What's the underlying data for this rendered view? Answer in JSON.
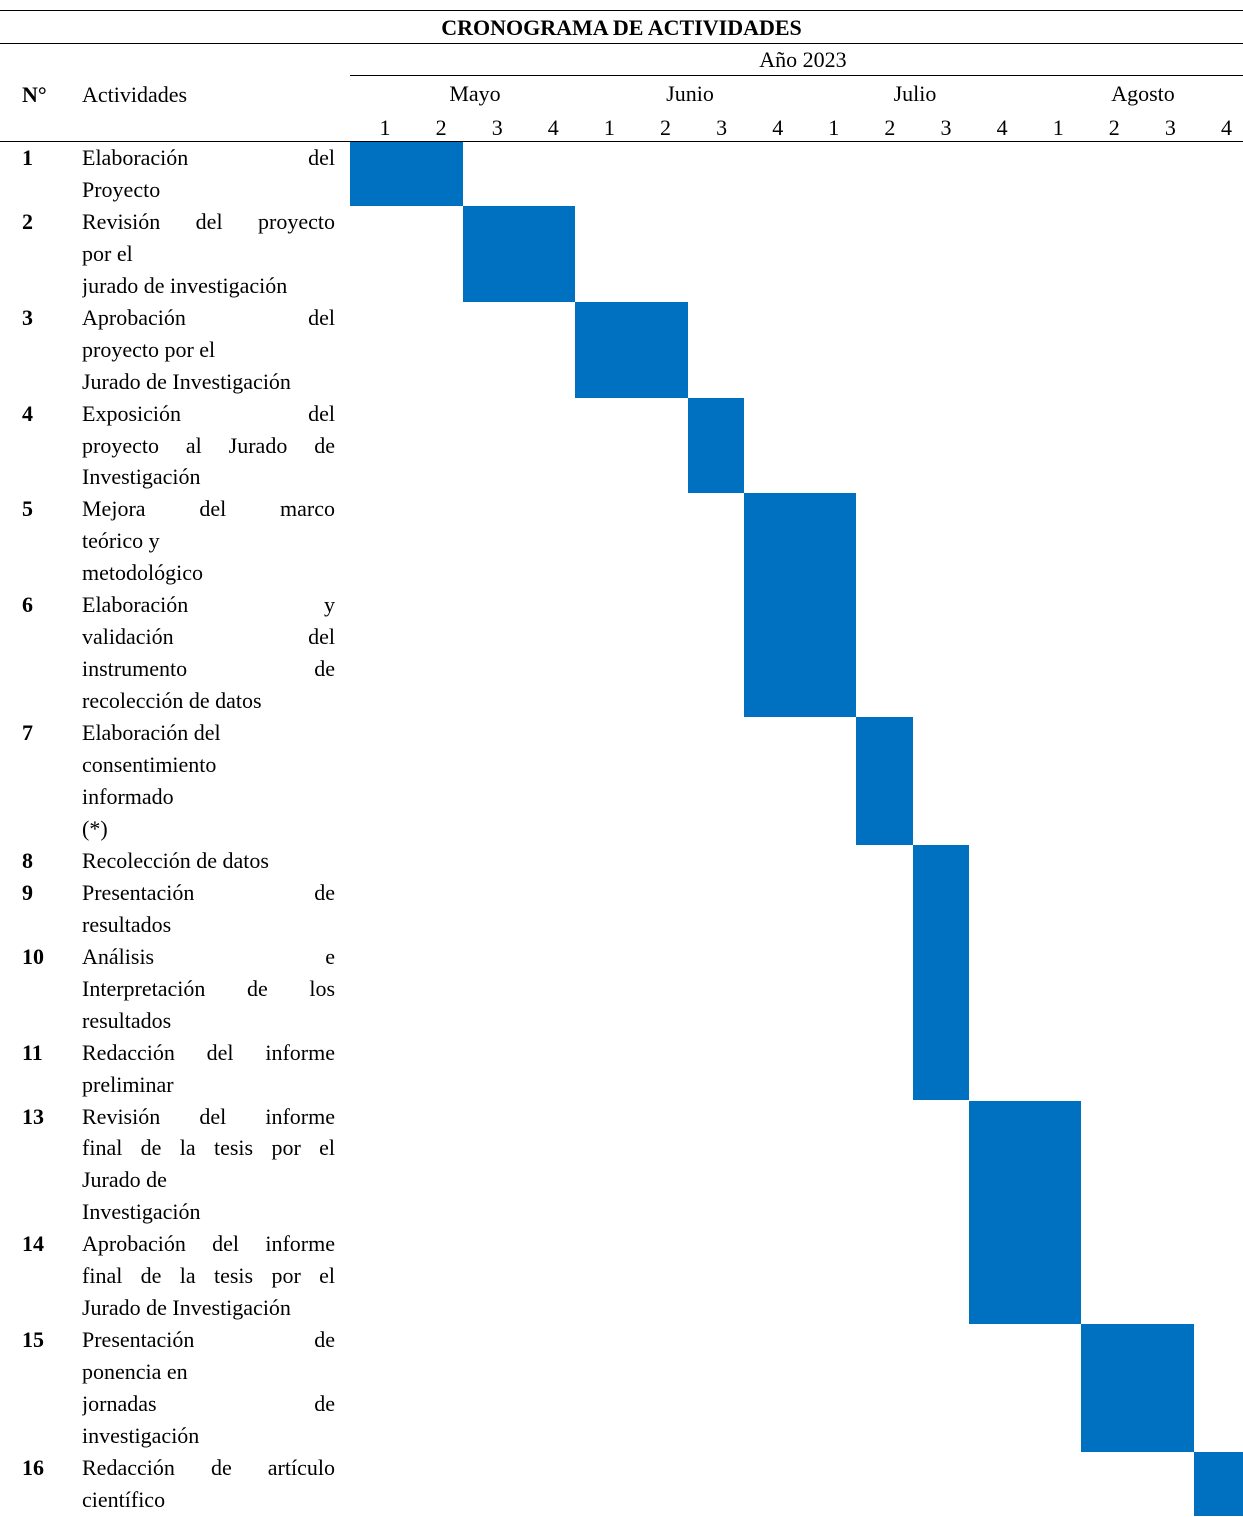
{
  "title": "CRONOGRAMA DE ACTIVIDADES",
  "year_label": "Año 2023",
  "header": {
    "number": "N°",
    "activities": "Actividades"
  },
  "months": [
    "Mayo",
    "Junio",
    "Julio",
    "Agosto"
  ],
  "weeks": [
    "1",
    "2",
    "3",
    "4",
    "1",
    "2",
    "3",
    "4",
    "1",
    "2",
    "3",
    "4",
    "1",
    "2",
    "3",
    "4"
  ],
  "colors": {
    "bar": "#0070c0"
  },
  "activities": [
    {
      "n": "1",
      "lines": [
        "Elaboración del",
        "Proyecto"
      ],
      "justify": [
        true,
        false
      ],
      "start": 0,
      "end": 1,
      "lines_span": 2
    },
    {
      "n": "2",
      "lines": [
        "Revisión del proyecto",
        "por el",
        "jurado de investigación"
      ],
      "justify": [
        true,
        false,
        false
      ],
      "start": 2,
      "end": 3,
      "lines_span": 3
    },
    {
      "n": "3",
      "lines": [
        "Aprobación del",
        "proyecto por el",
        "Jurado de Investigación"
      ],
      "justify": [
        true,
        false,
        false
      ],
      "start": 4,
      "end": 5,
      "lines_span": 3
    },
    {
      "n": "4",
      "lines": [
        "Exposición del",
        "proyecto al Jurado de",
        "Investigación"
      ],
      "justify": [
        true,
        true,
        false
      ],
      "start": 6,
      "end": 6,
      "lines_span": 3
    },
    {
      "n": "5",
      "lines": [
        "Mejora del marco",
        "teórico y",
        "metodológico"
      ],
      "justify": [
        true,
        false,
        false
      ],
      "start": 7,
      "end": 8,
      "lines_span": 3
    },
    {
      "n": "6",
      "lines": [
        "Elaboración y",
        "validación del",
        "instrumento de",
        "recolección de datos"
      ],
      "justify": [
        true,
        true,
        true,
        false
      ],
      "start": 7,
      "end": 8,
      "lines_span": 4
    },
    {
      "n": "7",
      "lines": [
        "Elaboración del",
        "consentimiento",
        "informado",
        "(*)"
      ],
      "justify": [
        false,
        false,
        false,
        false
      ],
      "start": 9,
      "end": 9,
      "lines_span": 4
    },
    {
      "n": "8",
      "lines": [
        "Recolección de datos"
      ],
      "justify": [
        false
      ],
      "start": 10,
      "end": 10,
      "lines_span": 1
    },
    {
      "n": "9",
      "lines": [
        "Presentación de",
        "resultados"
      ],
      "justify": [
        true,
        false
      ],
      "start": 10,
      "end": 10,
      "lines_span": 2
    },
    {
      "n": "10",
      "lines": [
        "Análisis e",
        "Interpretación de los",
        "resultados"
      ],
      "justify": [
        true,
        true,
        false
      ],
      "start": 10,
      "end": 10,
      "lines_span": 3
    },
    {
      "n": "11",
      "lines": [
        "Redacción del informe",
        "preliminar"
      ],
      "justify": [
        true,
        false
      ],
      "start": 10,
      "end": 10,
      "lines_span": 2
    },
    {
      "n": "13",
      "lines": [
        "Revisión del informe",
        "final de la tesis por el",
        "Jurado de",
        "Investigación"
      ],
      "justify": [
        true,
        true,
        false,
        false
      ],
      "start": 11,
      "end": 12,
      "lines_span": 4
    },
    {
      "n": "14",
      "lines": [
        "Aprobación del informe",
        "final de la tesis por el",
        "Jurado de Investigación"
      ],
      "justify": [
        true,
        true,
        false
      ],
      "start": 11,
      "end": 12,
      "lines_span": 3
    },
    {
      "n": "15",
      "lines": [
        "Presentación de",
        "ponencia en",
        "jornadas de",
        "investigación"
      ],
      "justify": [
        true,
        false,
        true,
        false
      ],
      "start": 13,
      "end": 14,
      "lines_span": 4
    },
    {
      "n": "16",
      "lines": [
        "Redacción de artículo",
        "científico"
      ],
      "justify": [
        true,
        false
      ],
      "start": 15,
      "end": 15,
      "lines_span": 2
    }
  ]
}
